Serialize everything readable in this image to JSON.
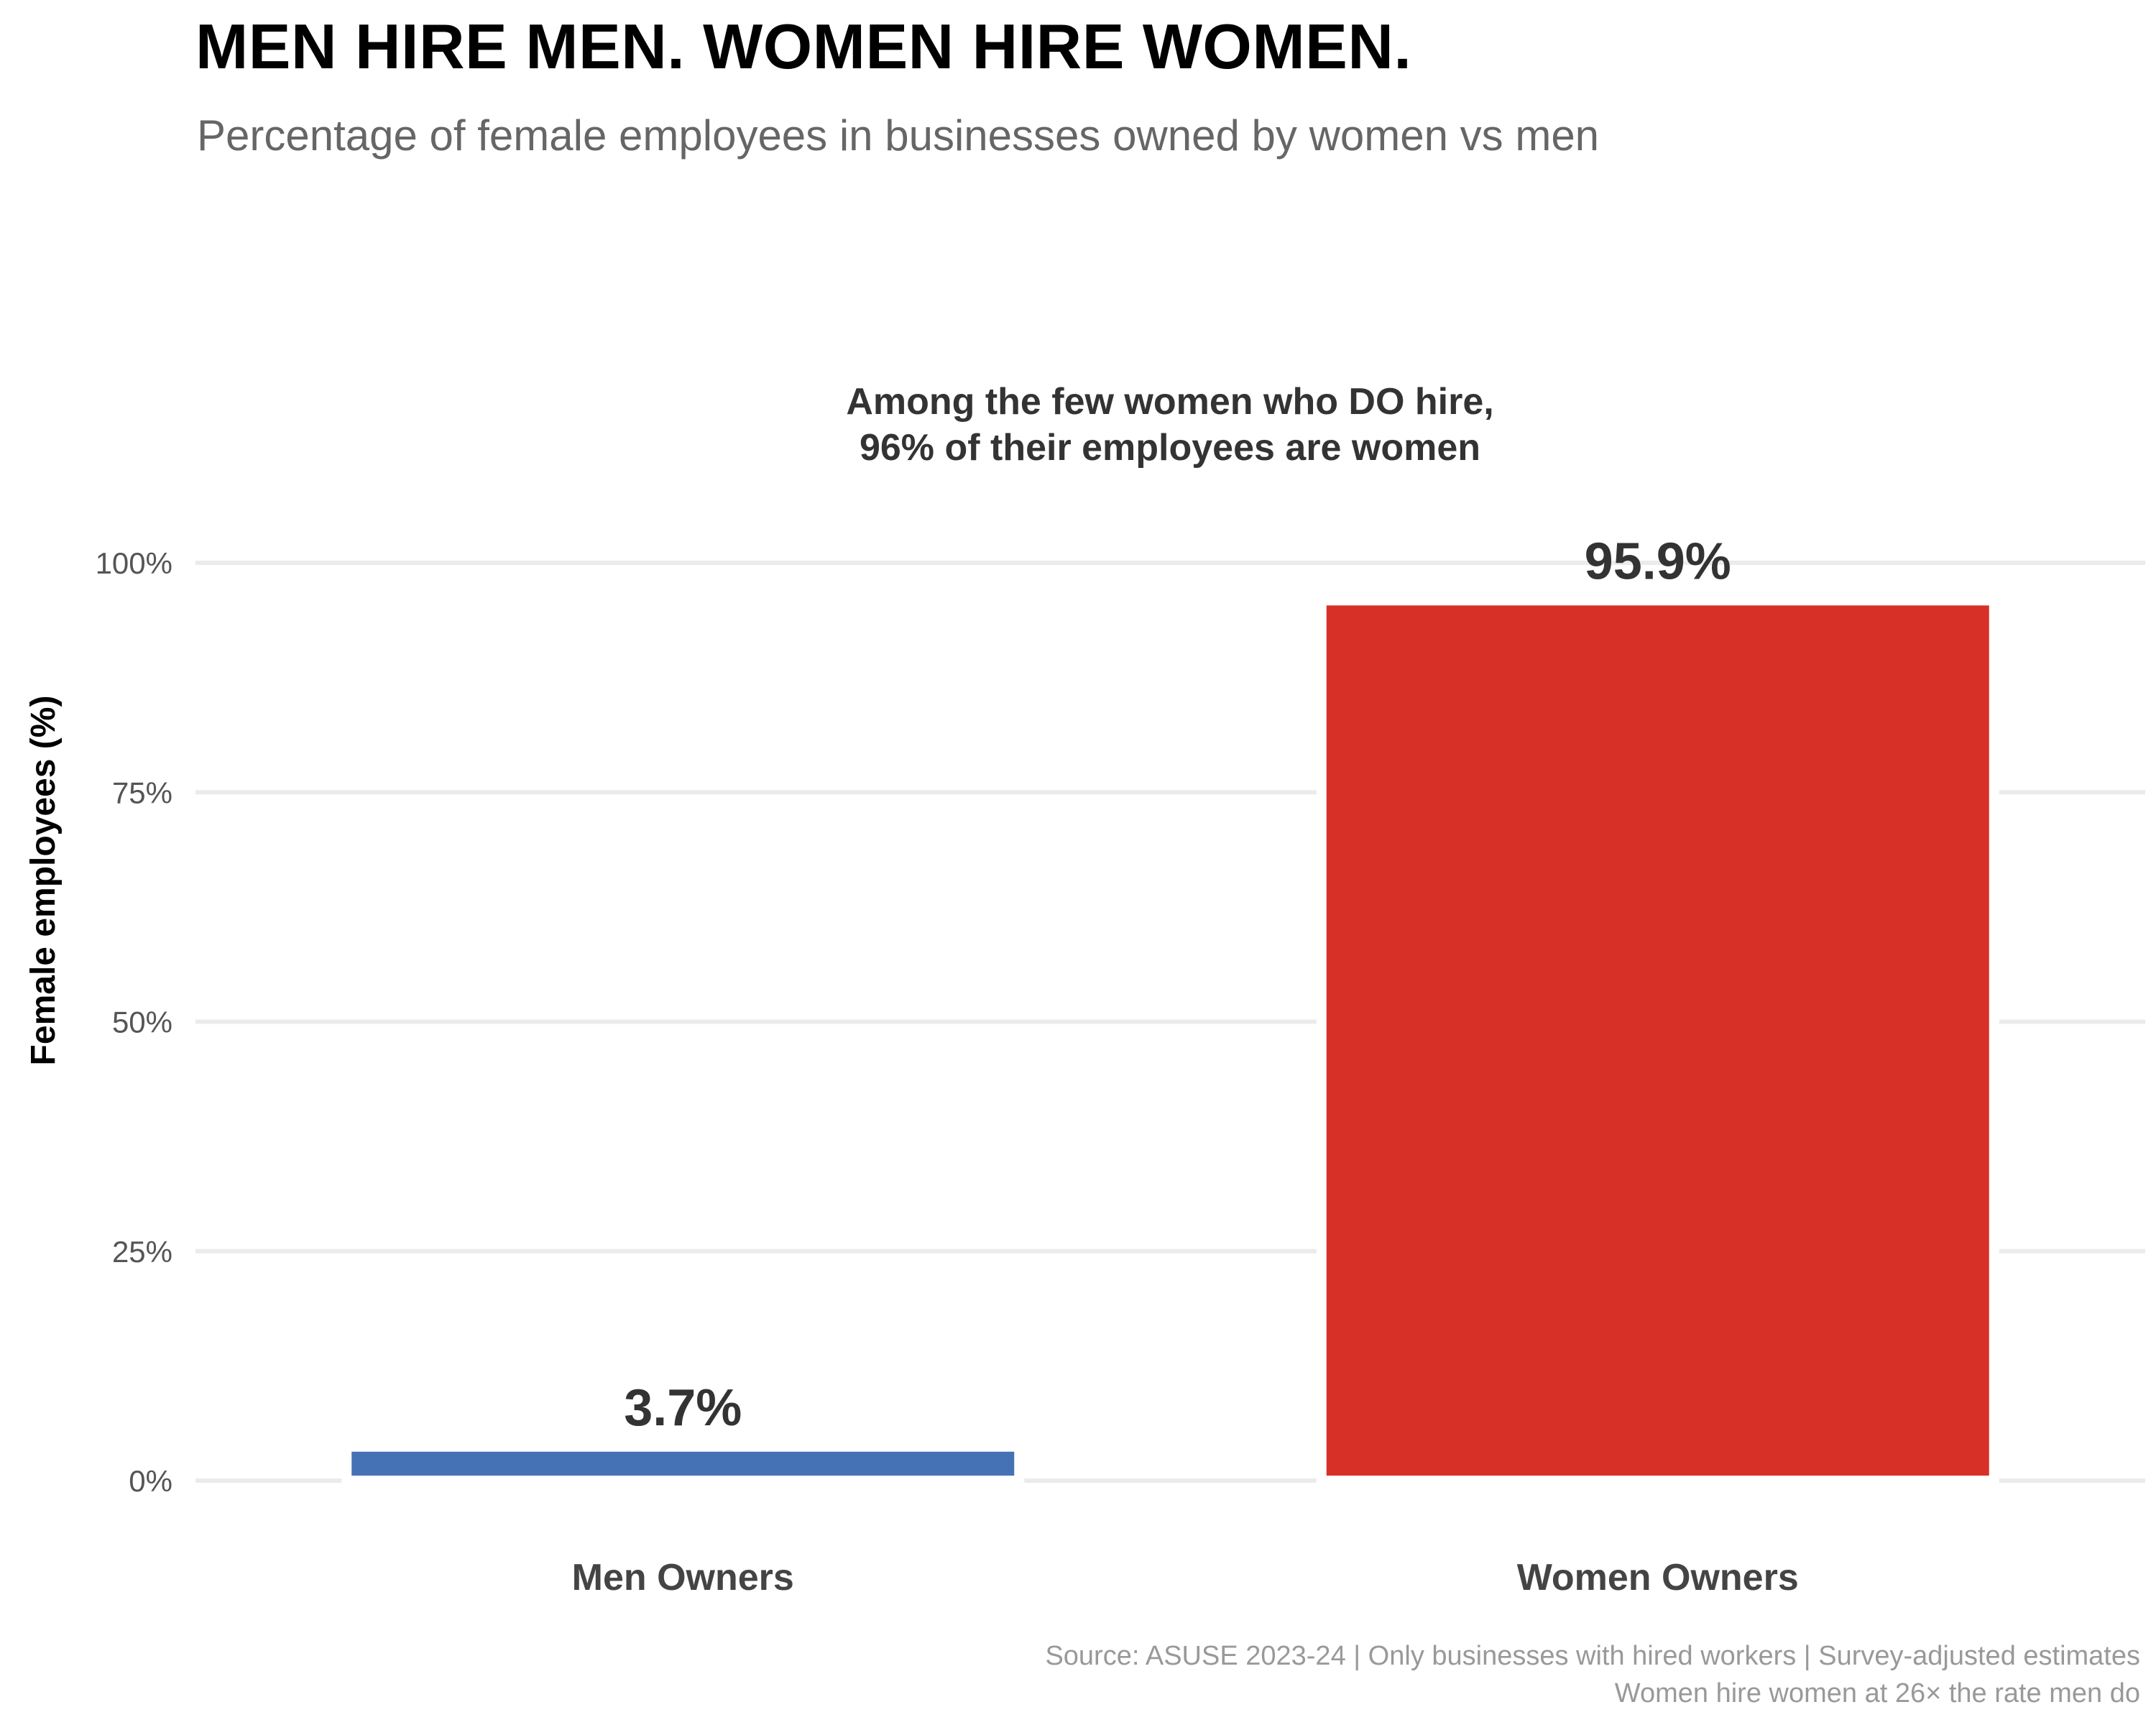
{
  "chart_data": {
    "type": "bar",
    "title": "MEN HIRE MEN. WOMEN HIRE WOMEN.",
    "subtitle": "Percentage of female employees in businesses owned by women vs men",
    "xlabel": "",
    "ylabel": "Female employees (%)",
    "ylim": [
      0,
      100
    ],
    "yticks": [
      0,
      25,
      50,
      75,
      100
    ],
    "ytick_labels": [
      "0%",
      "25%",
      "50%",
      "75%",
      "100%"
    ],
    "categories": [
      "Men Owners",
      "Women Owners"
    ],
    "values": [
      3.7,
      95.9
    ],
    "value_labels": [
      "3.7%",
      "95.9%"
    ],
    "colors": [
      "#4472b4",
      "#d73027"
    ],
    "grid": true,
    "annotation": {
      "lines": [
        "Among the few women who DO hire,",
        "96% of their employees are women"
      ]
    },
    "caption": {
      "lines": [
        "Source: ASUSE 2023-24 | Only businesses with hired workers | Survey-adjusted estimates",
        "Women hire women at 26× the rate men do"
      ]
    }
  }
}
